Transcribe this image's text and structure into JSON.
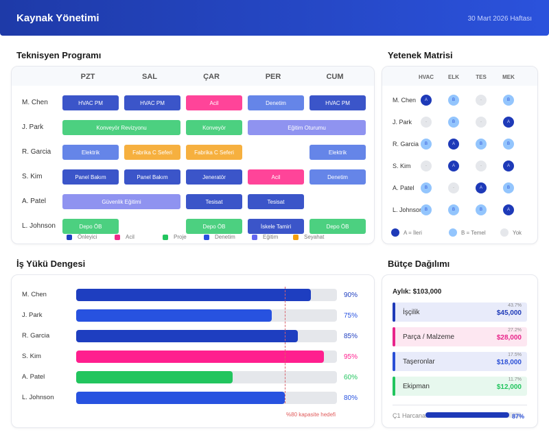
{
  "header": {
    "title": "Kaynak Yönetimi",
    "week": "30 Mart 2026 Haftası"
  },
  "schedule": {
    "title": "Teknisyen Programı",
    "days": [
      "PZT",
      "SAL",
      "ÇAR",
      "PER",
      "CUM"
    ],
    "rows": [
      {
        "name": "M. Chen",
        "blocks": [
          {
            "label": "HVAC PM",
            "start": 0,
            "span": 1,
            "type": "onleyici"
          },
          {
            "label": "HVAC PM",
            "start": 1,
            "span": 1,
            "type": "onleyici"
          },
          {
            "label": "Acil",
            "start": 2,
            "span": 1,
            "type": "acil"
          },
          {
            "label": "Denetim",
            "start": 3,
            "span": 1,
            "type": "denetim"
          },
          {
            "label": "HVAC PM",
            "start": 4,
            "span": 1,
            "type": "onleyici"
          }
        ]
      },
      {
        "name": "J. Park",
        "blocks": [
          {
            "label": "Konveyör Revizyonu",
            "start": 0,
            "span": 2,
            "type": "proje"
          },
          {
            "label": "Konveyör",
            "start": 2,
            "span": 1,
            "type": "proje"
          },
          {
            "label": "Eğitim Oturumu",
            "start": 3,
            "span": 2,
            "type": "egitim"
          }
        ]
      },
      {
        "name": "R. Garcia",
        "blocks": [
          {
            "label": "Elektrik",
            "start": 0,
            "span": 1,
            "type": "denetim"
          },
          {
            "label": "Fabrika C Seferi",
            "start": 1,
            "span": 1,
            "type": "seyahat"
          },
          {
            "label": "Fabrika C Seferi",
            "start": 2,
            "span": 1,
            "type": "seyahat"
          },
          {
            "label": "Elektrik",
            "start": 4,
            "span": 1,
            "type": "denetim"
          }
        ]
      },
      {
        "name": "S. Kim",
        "blocks": [
          {
            "label": "Panel Bakım",
            "start": 0,
            "span": 1,
            "type": "onleyici"
          },
          {
            "label": "Panel Bakım",
            "start": 1,
            "span": 1,
            "type": "onleyici"
          },
          {
            "label": "Jeneratör",
            "start": 2,
            "span": 1,
            "type": "onleyici"
          },
          {
            "label": "Acil",
            "start": 3,
            "span": 1,
            "type": "acil"
          },
          {
            "label": "Denetim",
            "start": 4,
            "span": 1,
            "type": "denetim"
          }
        ]
      },
      {
        "name": "A. Patel",
        "blocks": [
          {
            "label": "Güvenlik Eğitimi",
            "start": 0,
            "span": 2,
            "type": "egitim"
          },
          {
            "label": "Tesisat",
            "start": 2,
            "span": 1,
            "type": "onleyici"
          },
          {
            "label": "Tesisat",
            "start": 3,
            "span": 1,
            "type": "onleyici"
          }
        ]
      },
      {
        "name": "L. Johnson",
        "blocks": [
          {
            "label": "Depo ÖB",
            "start": 0,
            "span": 1,
            "type": "proje"
          },
          {
            "label": "Depo ÖB",
            "start": 2,
            "span": 1,
            "type": "proje"
          },
          {
            "label": "İskele Tamiri",
            "start": 3,
            "span": 1,
            "type": "onleyici"
          },
          {
            "label": "Depo ÖB",
            "start": 4,
            "span": 1,
            "type": "proje"
          }
        ]
      }
    ],
    "block_colors": {
      "onleyici": "#3b55c9",
      "acil": "#ff4499",
      "denetim": "#6585e8",
      "proje": "#4cd080",
      "egitim": "#8f93f0",
      "seyahat": "#f6b03f"
    },
    "legend": [
      {
        "label": "Önleyici",
        "color": "#1e40c0"
      },
      {
        "label": "Acil",
        "color": "#f0288a"
      },
      {
        "label": "Proje",
        "color": "#22c55e"
      },
      {
        "label": "Denetim",
        "color": "#2a50e0"
      },
      {
        "label": "Eğitim",
        "color": "#6366f1"
      },
      {
        "label": "Seyahat",
        "color": "#f59e0b"
      }
    ]
  },
  "skills": {
    "title": "Yetenek Matrisi",
    "columns": [
      "HVAC",
      "ELK",
      "TES",
      "MEK"
    ],
    "rows": [
      {
        "name": "M. Chen",
        "levels": [
          "A",
          "B",
          "-",
          "B"
        ]
      },
      {
        "name": "J. Park",
        "levels": [
          "-",
          "B",
          "-",
          "A"
        ]
      },
      {
        "name": "R. Garcia",
        "levels": [
          "B",
          "A",
          "B",
          "B"
        ]
      },
      {
        "name": "S. Kim",
        "levels": [
          "-",
          "A",
          "-",
          "A"
        ]
      },
      {
        "name": "A. Patel",
        "levels": [
          "B",
          "-",
          "A",
          "B"
        ]
      },
      {
        "name": "L. Johnson",
        "levels": [
          "B",
          "B",
          "B",
          "A"
        ]
      }
    ],
    "legend": [
      {
        "label": "A = İleri",
        "color": "#1e3ab8"
      },
      {
        "label": "B = Temel",
        "color": "#93c5fd"
      },
      {
        "label": "Yok",
        "color": "#e5e7eb"
      }
    ]
  },
  "workload": {
    "title": "İş Yükü Dengesi",
    "target": 80,
    "target_label": "%80 kapasite hedefi",
    "rows": [
      {
        "name": "M. Chen",
        "value": 90,
        "color": "#1e3ec0"
      },
      {
        "name": "J. Park",
        "value": 75,
        "color": "#2752e0"
      },
      {
        "name": "R. Garcia",
        "value": 85,
        "color": "#1e3ec0"
      },
      {
        "name": "S. Kim",
        "value": 95,
        "color": "#ff1f8e"
      },
      {
        "name": "A. Patel",
        "value": 60,
        "color": "#22c55e"
      },
      {
        "name": "L. Johnson",
        "value": 80,
        "color": "#2752e0"
      }
    ]
  },
  "budget": {
    "title": "Bütçe Dağılımı",
    "monthly": "Aylık: $103,000",
    "items": [
      {
        "label": "İşçilik",
        "percent": "43.7%",
        "amount": "$45,000",
        "color": "#1e3ab8",
        "bg": "#e8ebfa"
      },
      {
        "label": "Parça / Malzeme",
        "percent": "27.2%",
        "amount": "$28,000",
        "color": "#e8248a",
        "bg": "#fde7f1"
      },
      {
        "label": "Taşeronlar",
        "percent": "17.5%",
        "amount": "$18,000",
        "color": "#2a4fd6",
        "bg": "#e8ebfa"
      },
      {
        "label": "Ekipman",
        "percent": "11.7%",
        "amount": "$12,000",
        "color": "#22c55e",
        "bg": "#e7f8ee"
      }
    ],
    "spent_label": "Ç1 Harcanan",
    "spent_percent": 87,
    "spent_text": "87%"
  }
}
